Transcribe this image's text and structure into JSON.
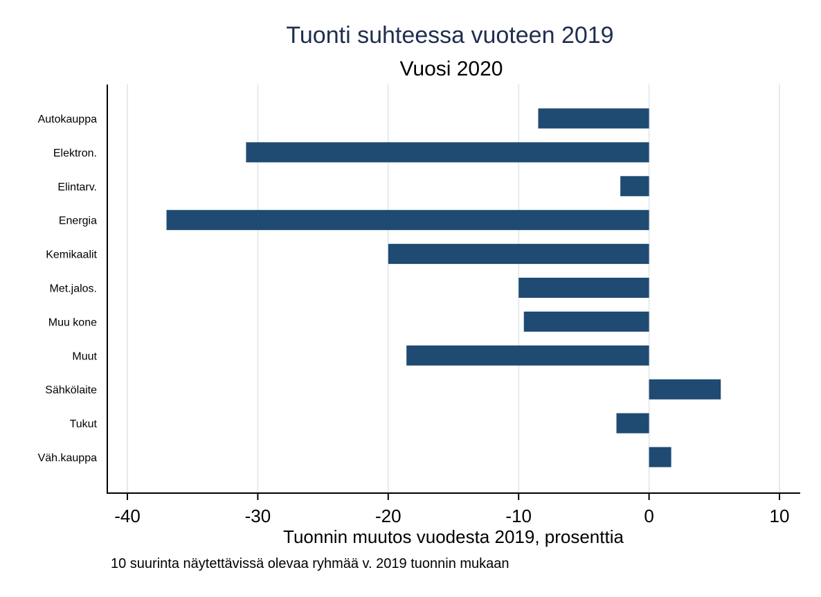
{
  "chart_data": {
    "type": "bar",
    "orientation": "horizontal",
    "title": "Tuonti suhteessa vuoteen 2019",
    "subtitle": "Vuosi 2020",
    "xlabel": "Tuonnin muutos vuodesta 2019, prosenttia",
    "ylabel": "",
    "note": "10 suurinta näytettävissä olevaa ryhmää v. 2019 tuonnin mukaan",
    "categories": [
      "Autokauppa",
      "Elektron.",
      "Elintarv.",
      "Energia",
      "Kemikaalit",
      "Met.jalos.",
      "Muu kone",
      "Muut",
      "Sähkölaite",
      "Tukut",
      "Väh.kauppa"
    ],
    "values": [
      -8.5,
      -30.9,
      -2.2,
      -37.0,
      -20.0,
      -10.0,
      -9.6,
      -18.6,
      5.5,
      -2.5,
      1.7
    ],
    "xlim": [
      -40,
      10
    ],
    "xticks": [
      -40,
      -30,
      -20,
      -10,
      0,
      10
    ],
    "xtick_labels": [
      "-40",
      "-30",
      "-20",
      "-10",
      "0",
      "10"
    ],
    "grid": true,
    "legend": "none",
    "colors": {
      "bar": "#1f4a72",
      "grid": "#e4ebee",
      "title": "#1f2d4f"
    }
  }
}
